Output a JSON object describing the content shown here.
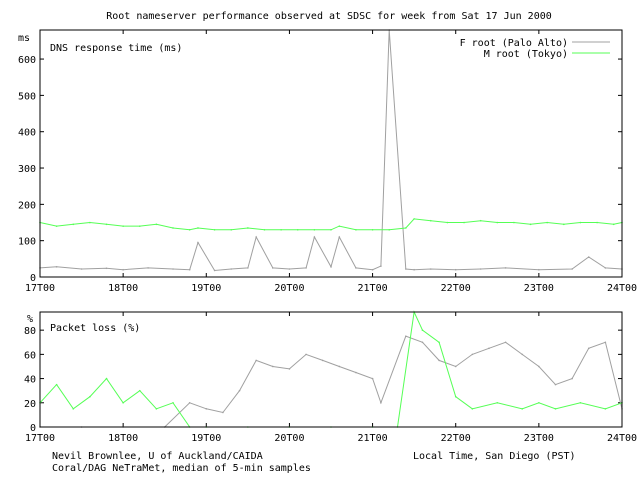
{
  "title": "Root nameserver performance observed at SDSC for week from Sat 17 Jun 2000",
  "footer": {
    "credit_line1": "Nevil Brownlee, U of Auckland/CAIDA",
    "credit_line2": "Coral/DAG NeTraMet, median of 5-min samples",
    "xlabel": "Local Time, San Diego (PST)"
  },
  "colors": {
    "f_root": "#a0a0a0",
    "m_root": "#55ff55",
    "axis": "#000000"
  },
  "chart_data": [
    {
      "type": "line",
      "title": "DNS response time (ms)",
      "unit_label": "ms",
      "xlabel": "Local Time, San Diego (PST)",
      "ylabel": "ms",
      "x_ticks": [
        "17T00",
        "18T00",
        "19T00",
        "20T00",
        "21T00",
        "22T00",
        "23T00",
        "24T00"
      ],
      "xlim": [
        17,
        24
      ],
      "ylim": [
        0,
        680
      ],
      "y_ticks": [
        0,
        100,
        200,
        300,
        400,
        500,
        600
      ],
      "legend_position": "top-right",
      "series": [
        {
          "name": "F root (Palo Alto)",
          "color": "#a0a0a0",
          "x": [
            17.0,
            17.2,
            17.5,
            17.8,
            18.0,
            18.3,
            18.6,
            18.8,
            18.9,
            19.1,
            19.3,
            19.5,
            19.6,
            19.8,
            20.0,
            20.2,
            20.3,
            20.5,
            20.6,
            20.8,
            21.0,
            21.1,
            21.2,
            21.4,
            21.5,
            21.7,
            22.0,
            22.3,
            22.6,
            23.0,
            23.4,
            23.6,
            23.8,
            24.0
          ],
          "values": [
            25,
            28,
            22,
            24,
            20,
            25,
            22,
            20,
            95,
            18,
            22,
            25,
            110,
            25,
            22,
            25,
            110,
            28,
            110,
            25,
            20,
            30,
            680,
            22,
            20,
            22,
            20,
            22,
            25,
            20,
            22,
            55,
            25,
            22
          ]
        },
        {
          "name": "M root (Tokyo)",
          "color": "#55ff55",
          "x": [
            17.0,
            17.2,
            17.4,
            17.6,
            17.8,
            18.0,
            18.2,
            18.4,
            18.6,
            18.8,
            18.9,
            19.1,
            19.3,
            19.5,
            19.7,
            19.9,
            20.1,
            20.3,
            20.5,
            20.6,
            20.8,
            21.0,
            21.2,
            21.4,
            21.5,
            21.7,
            21.9,
            22.1,
            22.3,
            22.5,
            22.7,
            22.9,
            23.1,
            23.3,
            23.5,
            23.7,
            23.9,
            24.0
          ],
          "values": [
            150,
            140,
            145,
            150,
            145,
            140,
            140,
            145,
            135,
            130,
            135,
            130,
            130,
            135,
            130,
            130,
            130,
            130,
            130,
            140,
            130,
            130,
            130,
            135,
            160,
            155,
            150,
            150,
            155,
            150,
            150,
            145,
            150,
            145,
            150,
            150,
            145,
            150
          ]
        }
      ]
    },
    {
      "type": "line",
      "title": "Packet loss (%)",
      "unit_label": "%",
      "xlabel": "Local Time, San Diego (PST)",
      "ylabel": "%",
      "x_ticks": [
        "17T00",
        "18T00",
        "19T00",
        "20T00",
        "21T00",
        "22T00",
        "23T00",
        "24T00"
      ],
      "xlim": [
        17,
        24
      ],
      "ylim": [
        0,
        95
      ],
      "y_ticks": [
        0,
        20,
        40,
        60,
        80
      ],
      "series": [
        {
          "name": "F root (Palo Alto)",
          "color": "#a0a0a0",
          "x": [
            17.0,
            17.5,
            18.0,
            18.5,
            18.8,
            19.0,
            19.2,
            19.4,
            19.6,
            19.8,
            20.0,
            20.2,
            20.4,
            20.6,
            20.8,
            21.0,
            21.1,
            21.4,
            21.6,
            21.8,
            22.0,
            22.2,
            22.4,
            22.6,
            22.8,
            23.0,
            23.2,
            23.4,
            23.6,
            23.8,
            24.0
          ],
          "values": [
            0,
            0,
            0,
            0,
            20,
            15,
            12,
            30,
            55,
            50,
            48,
            60,
            55,
            50,
            45,
            40,
            20,
            75,
            70,
            55,
            50,
            60,
            65,
            70,
            60,
            50,
            35,
            40,
            65,
            70,
            15
          ]
        },
        {
          "name": "M root (Tokyo)",
          "color": "#55ff55",
          "x": [
            17.0,
            17.2,
            17.4,
            17.6,
            17.8,
            18.0,
            18.2,
            18.4,
            18.6,
            18.8,
            19.0,
            19.5,
            20.0,
            20.5,
            21.0,
            21.3,
            21.5,
            21.6,
            21.8,
            22.0,
            22.2,
            22.5,
            22.8,
            23.0,
            23.2,
            23.5,
            23.8,
            24.0
          ],
          "values": [
            20,
            35,
            15,
            25,
            40,
            20,
            30,
            15,
            20,
            0,
            0,
            0,
            0,
            0,
            0,
            0,
            95,
            80,
            70,
            25,
            15,
            20,
            15,
            20,
            15,
            20,
            15,
            20
          ]
        }
      ]
    }
  ]
}
